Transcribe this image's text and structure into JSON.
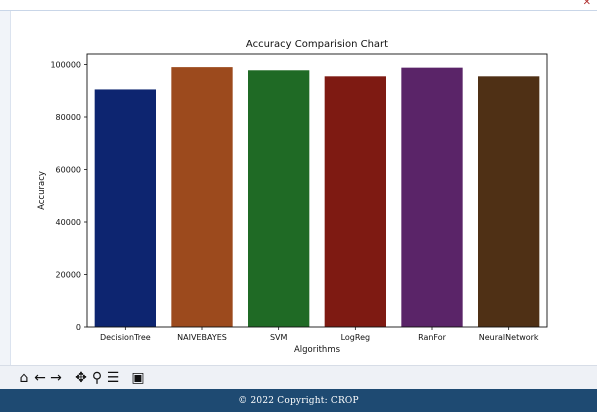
{
  "footer": {
    "copyright": "© 2022 Copyright: CROP"
  },
  "toolbar": {
    "buttons": [
      {
        "name": "home",
        "glyph": "🏠"
      },
      {
        "name": "back",
        "glyph": "←"
      },
      {
        "name": "forward",
        "glyph": "→"
      },
      {
        "name": "pan",
        "glyph": "✥"
      },
      {
        "name": "zoom",
        "glyph": "🔍"
      },
      {
        "name": "configure-subplots",
        "glyph": "☰"
      },
      {
        "name": "save",
        "glyph": "💾"
      }
    ]
  },
  "chart_data": {
    "type": "bar",
    "title": "Accuracy Comparision Chart",
    "xlabel": "Algorithms",
    "ylabel": "Accuracy",
    "categories": [
      "DecisionTree",
      "NAIVEBAYES",
      "SVM",
      "LogReg",
      "RanFor",
      "NeuralNetwork"
    ],
    "values": [
      90500,
      99000,
      97800,
      95500,
      98800,
      95500
    ],
    "colors": [
      "#0d2570",
      "#9c4a1d",
      "#1f6a25",
      "#7e1a12",
      "#5a2468",
      "#4f3015"
    ],
    "yticks": [
      0,
      20000,
      40000,
      60000,
      80000,
      100000
    ],
    "ytick_labels": [
      "0",
      "20000",
      "40000",
      "60000",
      "80000",
      "100000"
    ],
    "ylim": [
      0,
      104000
    ],
    "grid": false,
    "legend": "none"
  }
}
